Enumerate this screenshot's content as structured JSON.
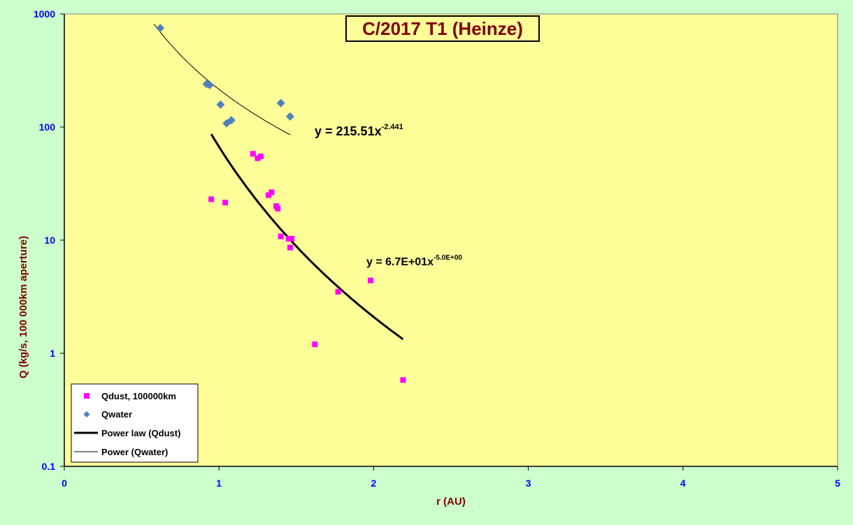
{
  "chart_data": {
    "type": "scatter",
    "title": "C/2017 T1 (Heinze)",
    "xlabel": "r (AU)",
    "ylabel": "Q (kg/s, 100 000km aperture)",
    "xlim": [
      0,
      5
    ],
    "ylim": [
      0.1,
      1000
    ],
    "yscale": "log",
    "grid": false,
    "legend_position": "bottom-left",
    "x_ticks": [
      "0",
      "1",
      "2",
      "3",
      "4",
      "5"
    ],
    "y_ticks": [
      "0.1",
      "1",
      "10",
      "100",
      "1000"
    ],
    "colors": {
      "plot_bg": "#ffff99",
      "page_bg": "#ccffcc",
      "dust_marker": "#ff00ff",
      "water_marker": "#4f81bd",
      "dust_fit": "#000000",
      "water_fit": "#000000",
      "title": "#800000",
      "ticks": "#0000ff"
    },
    "series": [
      {
        "name": "Qdust, 100000km",
        "kind": "marker-square",
        "x": [
          0.95,
          1.04,
          1.22,
          1.25,
          1.27,
          1.32,
          1.34,
          1.37,
          1.38,
          1.4,
          1.45,
          1.47,
          1.46,
          1.77,
          1.98,
          1.62,
          2.19
        ],
        "y": [
          23,
          21.5,
          58,
          53,
          55,
          25,
          26.5,
          20,
          19,
          10.8,
          10.3,
          10.3,
          8.6,
          3.5,
          4.4,
          1.2,
          0.58
        ]
      },
      {
        "name": "Qwater",
        "kind": "marker-diamond",
        "x": [
          0.62,
          0.92,
          0.94,
          1.01,
          1.05,
          1.08,
          1.4,
          1.46
        ],
        "y": [
          750,
          240,
          235,
          158,
          108,
          115,
          163,
          124
        ]
      },
      {
        "name": "Power law (Qdust)",
        "kind": "fit-thick",
        "a": 67,
        "b": -5.0,
        "x_range": [
          0.95,
          2.19
        ]
      },
      {
        "name": "Power (Qwater)",
        "kind": "fit-thin",
        "a": 215.51,
        "b": -2.441,
        "x_range": [
          0.58,
          1.46
        ]
      }
    ],
    "annotations": [
      {
        "id": "water",
        "base": "y = 215.51x",
        "exponent": "-2.441"
      },
      {
        "id": "dust",
        "base": "y = 6.7E+01x",
        "exponent": "-5.0E+00"
      }
    ]
  }
}
